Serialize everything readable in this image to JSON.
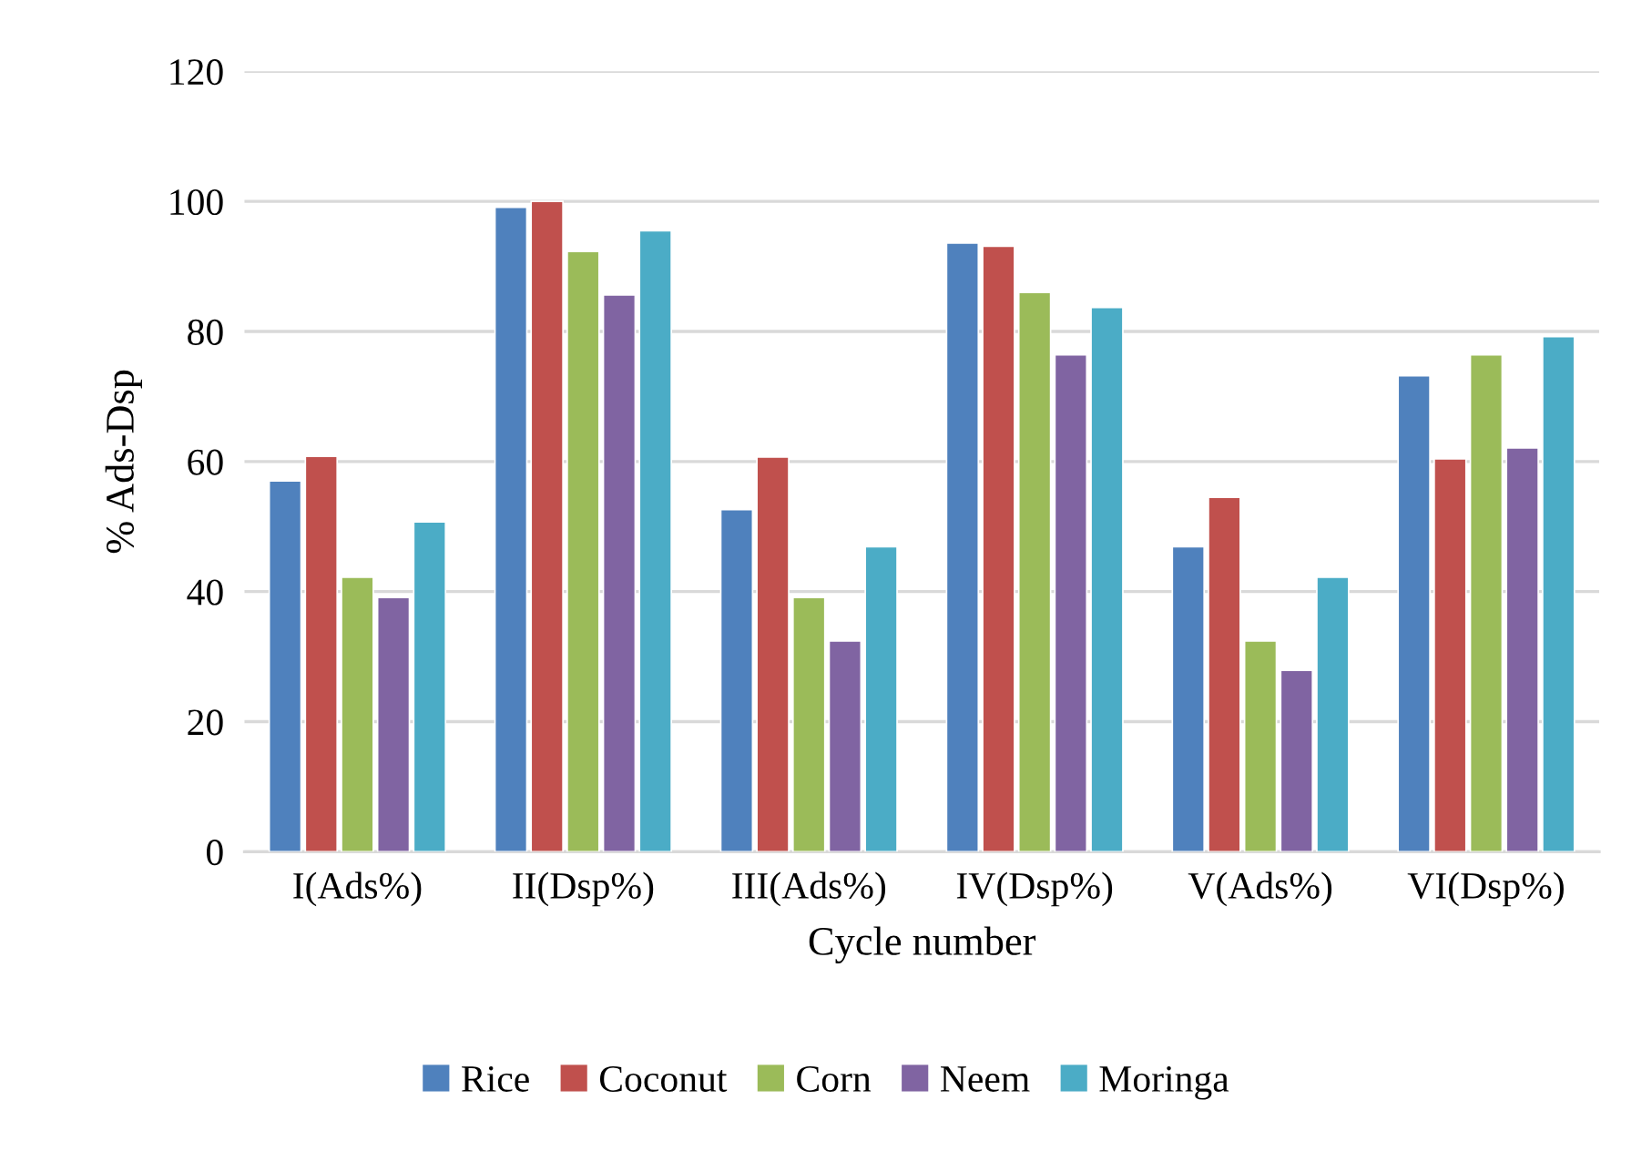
{
  "chart_data": {
    "type": "bar",
    "xlabel": "Cycle number",
    "ylabel": "% Ads-Dsp",
    "categories": [
      "I(Ads%)",
      "II(Dsp%)",
      "III(Ads%)",
      "IV(Dsp%)",
      "V(Ads%)",
      "VI(Dsp%)"
    ],
    "series": [
      {
        "name": "Rice",
        "color": "#4f81bd",
        "values": [
          57.0,
          99.1,
          52.6,
          93.6,
          46.9,
          73.2
        ]
      },
      {
        "name": "Coconut",
        "color": "#c0504d",
        "values": [
          60.8,
          100.0,
          60.7,
          93.1,
          54.5,
          60.4
        ]
      },
      {
        "name": "Corn",
        "color": "#9bbb59",
        "values": [
          42.2,
          92.3,
          39.1,
          86.0,
          32.4,
          76.4
        ]
      },
      {
        "name": "Neem",
        "color": "#8064a2",
        "values": [
          39.1,
          85.6,
          32.4,
          76.4,
          27.9,
          62.1
        ]
      },
      {
        "name": "Moringa",
        "color": "#4bacc6",
        "values": [
          50.7,
          95.5,
          46.9,
          83.7,
          42.2,
          79.2
        ]
      }
    ],
    "ylim": [
      0,
      120
    ],
    "yticks": [
      0,
      20,
      40,
      60,
      80,
      100,
      120
    ],
    "grid": "y",
    "legend": "bottom"
  }
}
